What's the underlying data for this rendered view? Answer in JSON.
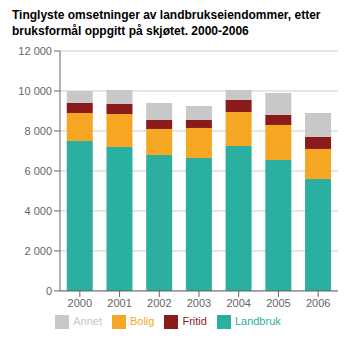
{
  "chart_data": {
    "type": "bar",
    "title": "Tinglyste omsetninger av landbrukseiendommer, etter\nbruksformål oppgitt på skjøtet. 2000-2006",
    "categories": [
      "2000",
      "2001",
      "2002",
      "2003",
      "2004",
      "2005",
      "2006"
    ],
    "series": [
      {
        "name": "Landbruk",
        "color": "#2aafa0",
        "values": [
          7500,
          7200,
          6800,
          6650,
          7250,
          6550,
          5600
        ]
      },
      {
        "name": "Bolig",
        "color": "#f5a623",
        "values": [
          1400,
          1650,
          1300,
          1500,
          1700,
          1750,
          1500
        ]
      },
      {
        "name": "Fritid",
        "color": "#8b1a1a",
        "values": [
          500,
          500,
          450,
          400,
          600,
          500,
          600
        ]
      },
      {
        "name": "Annet",
        "color": "#c8c8c8",
        "values": [
          600,
          700,
          850,
          700,
          500,
          1100,
          1200
        ]
      }
    ],
    "stacked": true,
    "ylim": [
      0,
      12000
    ],
    "yticks": [
      0,
      {
        "value": 2000,
        "label": "2 000"
      },
      {
        "value": 4000,
        "label": "4 000"
      },
      {
        "value": 6000,
        "label": "6 000"
      },
      {
        "value": 8000,
        "label": "8 000"
      },
      {
        "value": 10000,
        "label": "10 000"
      },
      {
        "value": 12000,
        "label": "12 000"
      }
    ],
    "grid": true,
    "legend": "bottom"
  }
}
